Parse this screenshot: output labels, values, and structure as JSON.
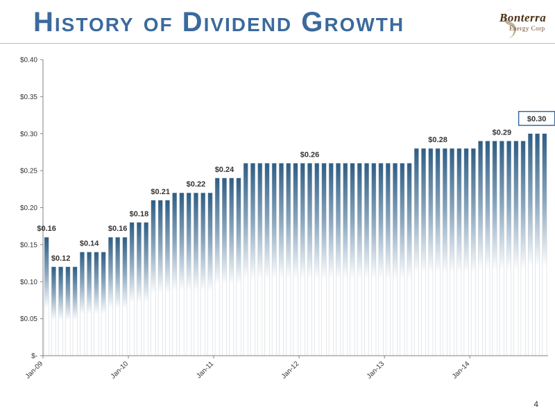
{
  "slide": {
    "title": "History of Dividend Growth",
    "page_number": "4"
  },
  "logo": {
    "name": "Bonterra",
    "subtitle": "Energy Corp"
  },
  "chart_data": {
    "type": "bar",
    "title": "",
    "xlabel": "",
    "ylabel": "",
    "ylim": [
      0,
      0.4
    ],
    "yticks": [
      0,
      0.05,
      0.1,
      0.15,
      0.2,
      0.25,
      0.3,
      0.35,
      0.4
    ],
    "ytick_labels": [
      "$-",
      "$0.05",
      "$0.10",
      "$0.15",
      "$0.20",
      "$0.25",
      "$0.30",
      "$0.35",
      "$0.40"
    ],
    "xtick_labels": [
      {
        "index": 0,
        "label": "Jan-09"
      },
      {
        "index": 12,
        "label": "Jan-10"
      },
      {
        "index": 24,
        "label": "Jan-11"
      },
      {
        "index": 36,
        "label": "Jan-12"
      },
      {
        "index": 48,
        "label": "Jan-13"
      },
      {
        "index": 60,
        "label": "Jan-14"
      }
    ],
    "values": [
      0.16,
      0.12,
      0.12,
      0.12,
      0.12,
      0.14,
      0.14,
      0.14,
      0.14,
      0.16,
      0.16,
      0.16,
      0.18,
      0.18,
      0.18,
      0.21,
      0.21,
      0.21,
      0.22,
      0.22,
      0.22,
      0.22,
      0.22,
      0.22,
      0.24,
      0.24,
      0.24,
      0.24,
      0.26,
      0.26,
      0.26,
      0.26,
      0.26,
      0.26,
      0.26,
      0.26,
      0.26,
      0.26,
      0.26,
      0.26,
      0.26,
      0.26,
      0.26,
      0.26,
      0.26,
      0.26,
      0.26,
      0.26,
      0.26,
      0.26,
      0.26,
      0.26,
      0.28,
      0.28,
      0.28,
      0.28,
      0.28,
      0.28,
      0.28,
      0.28,
      0.28,
      0.29,
      0.29,
      0.29,
      0.29,
      0.29,
      0.29,
      0.29,
      0.3,
      0.3,
      0.3
    ],
    "data_labels": [
      {
        "index": 0,
        "text": "$0.16"
      },
      {
        "index": 2,
        "text": "$0.12"
      },
      {
        "index": 6,
        "text": "$0.14"
      },
      {
        "index": 10,
        "text": "$0.16"
      },
      {
        "index": 13,
        "text": "$0.18"
      },
      {
        "index": 16,
        "text": "$0.21"
      },
      {
        "index": 21,
        "text": "$0.22"
      },
      {
        "index": 25,
        "text": "$0.24"
      },
      {
        "index": 37,
        "text": "$0.26"
      },
      {
        "index": 55,
        "text": "$0.28"
      },
      {
        "index": 64,
        "text": "$0.29"
      },
      {
        "index": 69,
        "text": "$0.30",
        "boxed": true
      }
    ],
    "grid": false,
    "legend": "none",
    "colors": {
      "bar_top": "#2e5d84",
      "bar_mid": "#8aa6bd",
      "bar_bottom": "#ffffff",
      "bar_stroke": "#b9c6d1",
      "axis": "#808080",
      "highlight_box": "#3b6a9c"
    }
  }
}
